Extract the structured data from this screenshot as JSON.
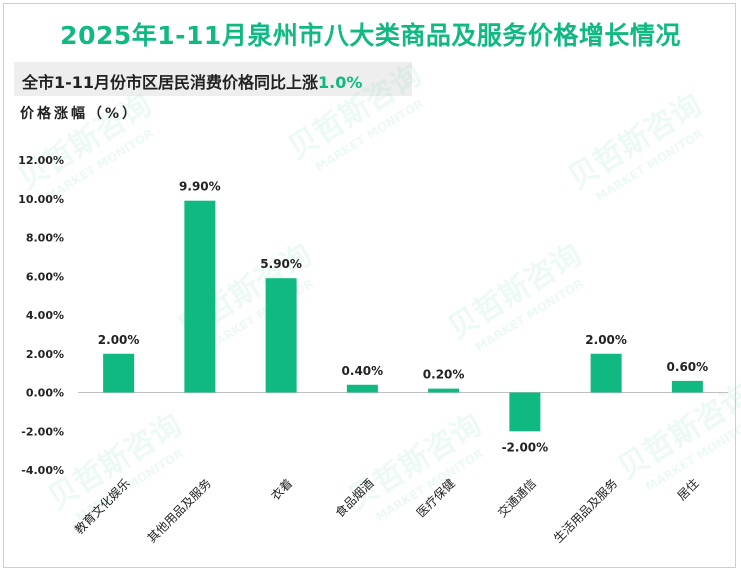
{
  "title": "2025年1-11月泉州市八大类商品及服务价格增长情况",
  "subtitle": {
    "prefix": "全市1-11月份市区居民消费价格同比上涨",
    "highlight": "1.0%"
  },
  "colors": {
    "accent": "#10b981",
    "bar": "#10b981",
    "text": "#222222"
  },
  "watermark": {
    "cn": "贝哲斯咨询",
    "en": "MARKET MONITOR"
  },
  "chart_data": {
    "type": "bar",
    "ylabel": "价格涨幅（%）",
    "categories": [
      "教育文化娱乐",
      "其他用品及服务",
      "衣着",
      "食品烟酒",
      "医疗保健",
      "交通通信",
      "生活用品及服务",
      "居住"
    ],
    "values": [
      2.0,
      9.9,
      5.9,
      0.4,
      0.2,
      -2.0,
      2.0,
      0.6
    ],
    "data_labels": [
      "2.00%",
      "9.90%",
      "5.90%",
      "0.40%",
      "0.20%",
      "-2.00%",
      "2.00%",
      "0.60%"
    ],
    "yticks": [
      -4,
      -2,
      0,
      2,
      4,
      6,
      8,
      10,
      12
    ],
    "ytick_labels": [
      "-4.00%",
      "-2.00%",
      "0.00%",
      "2.00%",
      "4.00%",
      "6.00%",
      "8.00%",
      "10.00%",
      "12.00%"
    ],
    "ylim": [
      -4,
      12
    ],
    "grid": false,
    "legend": "none"
  }
}
